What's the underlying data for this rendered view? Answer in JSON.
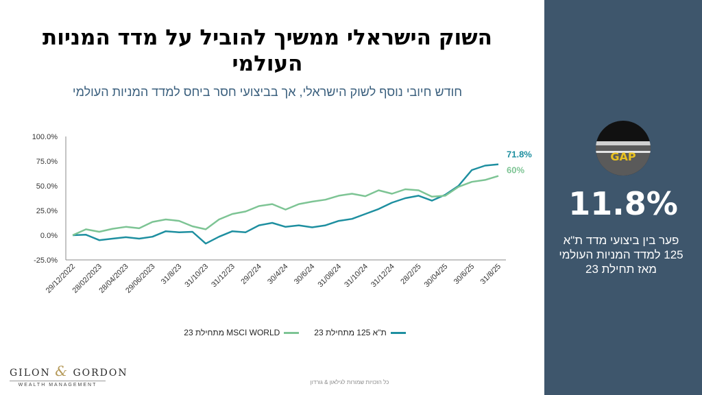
{
  "title": "השוק הישראלי ממשיך להוביל על מדד המניות העולמי",
  "subtitle": "חודש חיובי נוסף לשוק הישראלי, אך בביצועי חסר ביחס למדד המניות העולמי",
  "colors": {
    "ta125": "#1e8fa0",
    "msci": "#7dc494",
    "sidebar": "#3e566c"
  },
  "chart_data": {
    "type": "line",
    "title": "",
    "xlabel": "",
    "ylabel": "",
    "ylim": [
      -25,
      100
    ],
    "y_ticks": [
      "100.0%",
      "75.0%",
      "50.0%",
      "25.0%",
      "0.0%",
      "-25.0%"
    ],
    "y_tick_values": [
      100,
      75,
      50,
      25,
      0,
      -25
    ],
    "x_tick_labels": [
      "29/12/2022",
      "28/02/2023",
      "28/04/2023",
      "29/06/2023",
      "31/8/23",
      "31/10/23",
      "31/12/23",
      "29/2/24",
      "30/4/24",
      "30/6/24",
      "31/08/24",
      "31/10/24",
      "31/12/24",
      "28/2/25",
      "30/04/25",
      "30/6/25",
      "31/8/25"
    ],
    "grid": false,
    "legend_position": "bottom",
    "series": [
      {
        "name": "ת\"א 125 מתחילת 23",
        "color_key": "ta125",
        "end_label": "71.8%",
        "values": [
          0,
          0.5,
          -5,
          -3.5,
          -2,
          -3.5,
          -1.5,
          4,
          3,
          3.5,
          -8.5,
          -1.5,
          4,
          3,
          10,
          12.5,
          8.5,
          10,
          8,
          10,
          14.5,
          16.5,
          21.5,
          26.5,
          33,
          37.5,
          40,
          35,
          41,
          50,
          66,
          70.5,
          71.8
        ]
      },
      {
        "name": "MSCI WORLD מתחילת 23",
        "color_key": "msci",
        "end_label": "60%",
        "values": [
          0,
          6,
          3.5,
          6.5,
          8.5,
          7,
          13.5,
          16,
          14.5,
          9,
          6,
          16,
          21.5,
          24,
          29.5,
          31.5,
          26,
          31.5,
          34,
          36,
          40,
          42,
          39.5,
          45.5,
          42,
          46.5,
          45.5,
          39,
          40,
          49,
          54,
          56,
          60
        ]
      }
    ]
  },
  "sidebar": {
    "image_word": "GAP",
    "value": "11.8%",
    "caption_lines": [
      "פער בין ביצועי מדד ת\"א",
      "125 למדד המניות העולמי",
      "מאז תחילת 23"
    ]
  },
  "footer": {
    "logo_left": "GILON",
    "logo_amp": "&",
    "logo_right": "GORDON",
    "logo_sub": "WEALTH MANAGEMENT",
    "copyright": "כל הזכויות שמורות לגילאון & גורדון"
  }
}
